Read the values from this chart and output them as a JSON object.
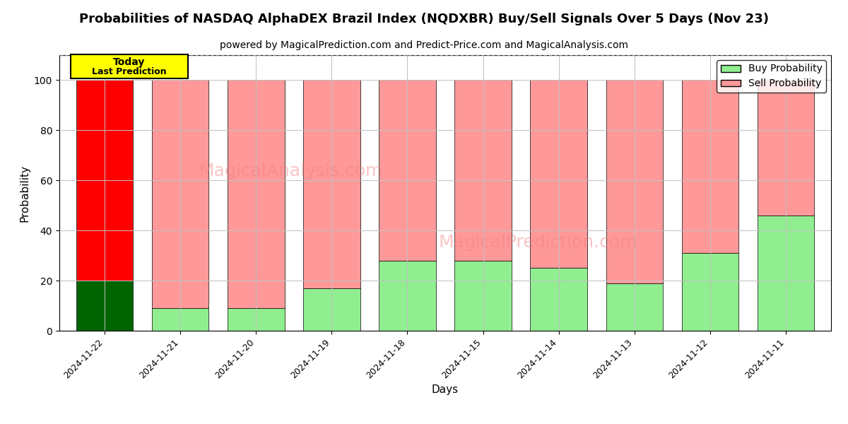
{
  "title": "Probabilities of NASDAQ AlphaDEX Brazil Index (NQDXBR) Buy/Sell Signals Over 5 Days (Nov 23)",
  "subtitle": "powered by MagicalPrediction.com and Predict-Price.com and MagicalAnalysis.com",
  "xlabel": "Days",
  "ylabel": "Probability",
  "categories": [
    "2024-11-22",
    "2024-11-21",
    "2024-11-20",
    "2024-11-19",
    "2024-11-18",
    "2024-11-15",
    "2024-11-14",
    "2024-11-13",
    "2024-11-12",
    "2024-11-11"
  ],
  "buy_values": [
    20,
    9,
    9,
    17,
    28,
    28,
    25,
    19,
    31,
    46
  ],
  "sell_values": [
    80,
    91,
    91,
    83,
    72,
    72,
    75,
    81,
    69,
    54
  ],
  "today_index": 0,
  "buy_color_today": "#006400",
  "sell_color_today": "#FF0000",
  "buy_color_normal": "#90EE90",
  "sell_color_normal": "#FF9999",
  "bar_edge_color": "#000000",
  "ylim": [
    0,
    110
  ],
  "yticks": [
    0,
    20,
    40,
    60,
    80,
    100
  ],
  "dashed_line_y": 110,
  "today_box_color": "#FFFF00",
  "today_label1": "Today",
  "today_label2": "Last Prediction",
  "watermark1_text": "MagicalAnalysis.com",
  "watermark2_text": "MagicalPrediction.com",
  "grid_color": "#C0C0C0",
  "background_color": "#FFFFFF",
  "title_fontsize": 13,
  "subtitle_fontsize": 10,
  "axis_label_fontsize": 11
}
